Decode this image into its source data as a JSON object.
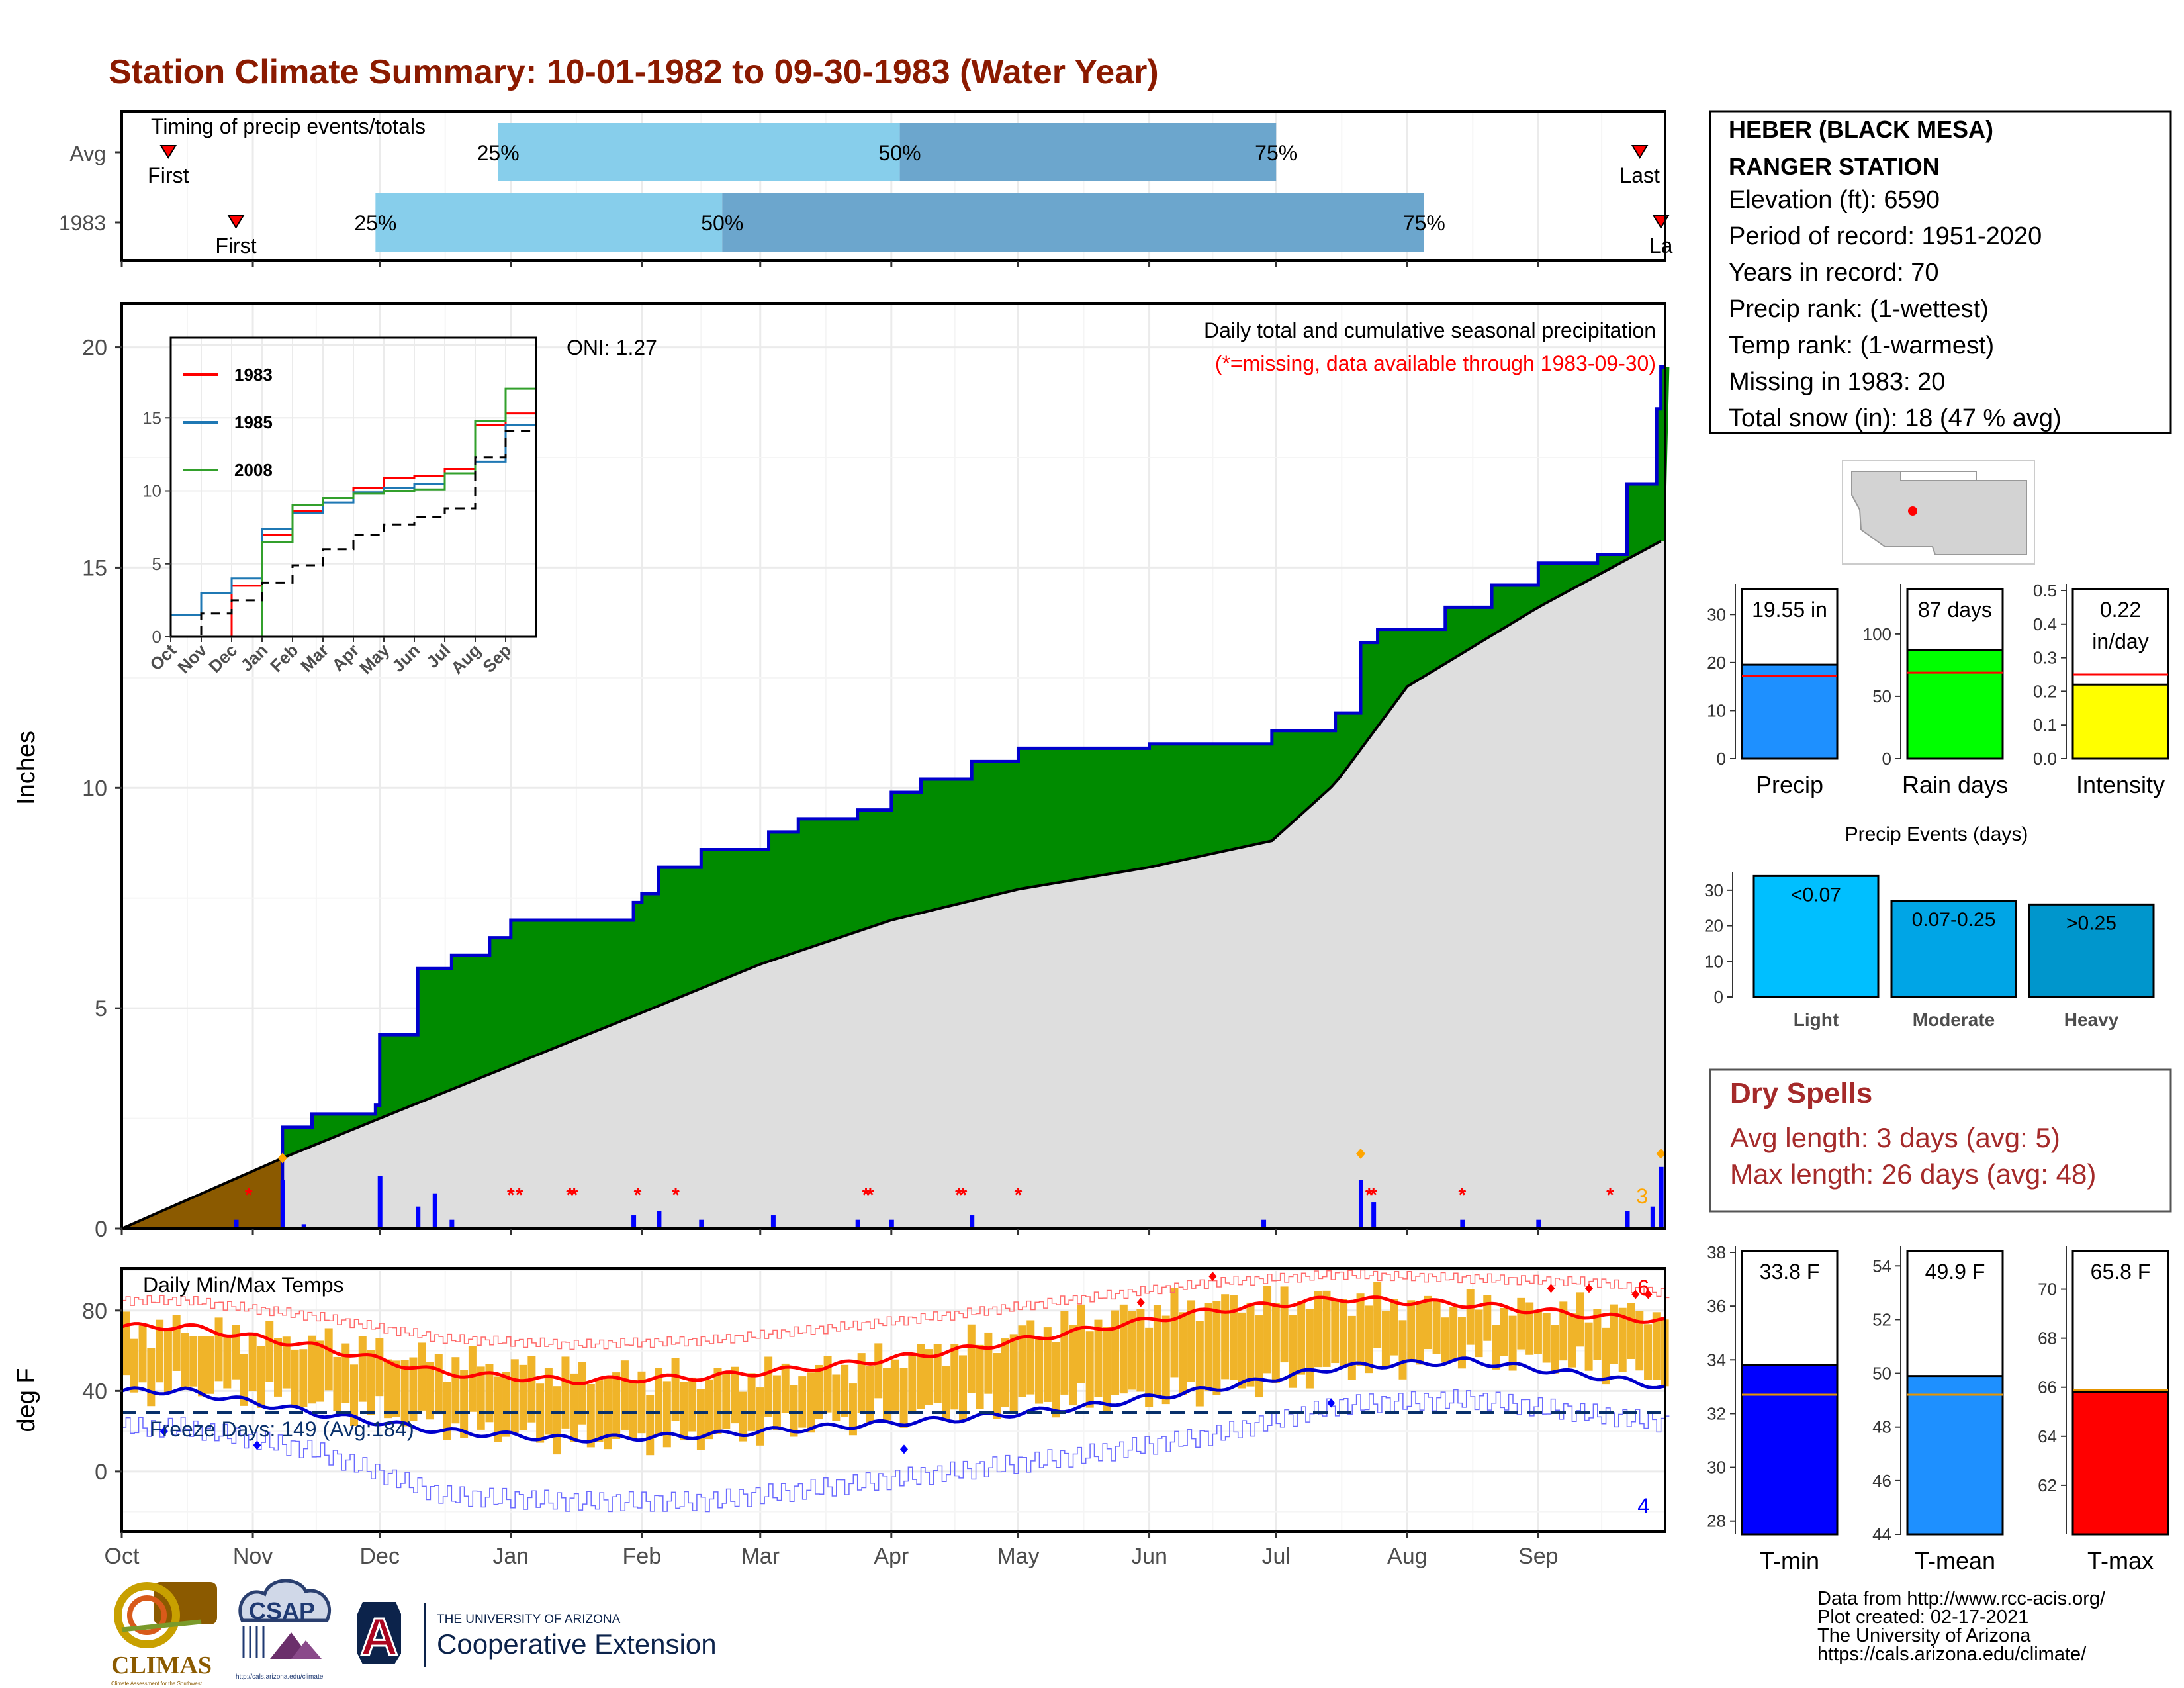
{
  "page": {
    "title": "Station Climate Summary: 10-01-1982 to 09-30-1983 (Water Year)",
    "credits": [
      "Data from http://www.rcc-acis.org/",
      "Plot created: 02-17-2021",
      "The University of Arizona",
      "https://cals.arizona.edu/climate/"
    ],
    "logos": {
      "climas": "CLIMAS",
      "climas_sub": "Climate Assessment for the Southwest",
      "csap": "CSAP",
      "csap_url": "http://cals.arizona.edu/climate",
      "ua_small": "THE UNIVERSITY OF ARIZONA",
      "ua_big": "Cooperative Extension",
      "ua_letter": "A"
    }
  },
  "station": {
    "name_line1": "HEBER (BLACK MESA)",
    "name_line2": "RANGER STATION",
    "lines": [
      "Elevation (ft): 6590",
      "Period of record: 1951-2020",
      "Years in record: 70",
      "Precip rank:  (1-wettest)",
      "Temp rank:  (1-warmest)",
      "Missing in 1983: 20",
      "Total snow (in): 18 (47 % avg)"
    ]
  },
  "colors": {
    "title": "#8b1a00",
    "timing_light": "#87ceeb",
    "timing_dark": "#6ca6cd",
    "cum_green": "#008b00",
    "cum_grey": "#dedede",
    "cum_brown": "#8b5a00",
    "line_blue": "#0000cd",
    "line_red": "#ff0000",
    "temp_bar": "#f0b429",
    "dry_spell": "#a52a2a"
  },
  "chart_data": [
    {
      "id": "timing",
      "type": "bar",
      "title": "Timing of precip events/totals",
      "rows": [
        "Avg",
        "1983"
      ],
      "row_avg": {
        "first_label": "First",
        "last_label": "Last",
        "first": "1982-10-12",
        "p25": "1982-12-29",
        "p50": "1983-04-03",
        "p75": "1983-07-01",
        "last": "1983-09-25"
      },
      "row_1983": {
        "first_label": "First",
        "last_label": "La",
        "first": "1982-10-28",
        "p25": "1982-11-30",
        "p50": "1983-02-20",
        "p75": "1983-08-05",
        "last": "1983-09-30"
      },
      "pct_labels": [
        "25%",
        "50%",
        "75%"
      ]
    },
    {
      "id": "precip",
      "type": "area",
      "ylabel": "Inches",
      "ylim": [
        0,
        21
      ],
      "yticks": [
        "0",
        "5",
        "10",
        "15",
        "20"
      ],
      "title": "Daily total and cumulative seasonal precipitation",
      "note": "(*=missing, data available through 1983-09-30)",
      "oni": "ONI: 1.27",
      "corner_label": "3",
      "xticks": [
        "Oct",
        "Nov",
        "Dec",
        "Jan",
        "Feb",
        "Mar",
        "Apr",
        "May",
        "Jun",
        "Jul",
        "Aug",
        "Sep"
      ],
      "series": [
        {
          "role": "cumulative-1983",
          "points": [
            [
              "1982-11-08",
              2.3
            ],
            [
              "1982-11-15",
              2.6
            ],
            [
              "1982-11-30",
              2.8
            ],
            [
              "1982-12-01",
              4.4
            ],
            [
              "1982-12-10",
              5.9
            ],
            [
              "1982-12-18",
              6.2
            ],
            [
              "1982-12-27",
              6.6
            ],
            [
              "1983-01-01",
              7.0
            ],
            [
              "1983-01-30",
              7.4
            ],
            [
              "1983-02-01",
              7.6
            ],
            [
              "1983-02-05",
              8.2
            ],
            [
              "1983-02-15",
              8.6
            ],
            [
              "1983-03-03",
              9.0
            ],
            [
              "1983-03-10",
              9.3
            ],
            [
              "1983-03-24",
              9.5
            ],
            [
              "1983-04-01",
              9.9
            ],
            [
              "1983-04-08",
              10.2
            ],
            [
              "1983-04-20",
              10.6
            ],
            [
              "1983-05-01",
              10.9
            ],
            [
              "1983-05-20",
              10.9
            ],
            [
              "1983-06-01",
              11.0
            ],
            [
              "1983-06-30",
              11.3
            ],
            [
              "1983-07-15",
              11.7
            ],
            [
              "1983-07-21",
              13.3
            ],
            [
              "1983-07-25",
              13.6
            ],
            [
              "1983-08-10",
              14.1
            ],
            [
              "1983-08-21",
              14.6
            ],
            [
              "1983-09-01",
              15.1
            ],
            [
              "1983-09-15",
              15.3
            ],
            [
              "1983-09-22",
              16.9
            ],
            [
              "1983-09-29",
              18.6
            ],
            [
              "1983-09-30",
              19.55
            ]
          ]
        },
        {
          "role": "cumulative-average",
          "points": [
            [
              "1982-10-01",
              0.0
            ],
            [
              "1982-11-08",
              1.6
            ],
            [
              "1982-12-01",
              2.5
            ],
            [
              "1983-01-01",
              3.7
            ],
            [
              "1983-02-01",
              4.9
            ],
            [
              "1983-03-01",
              6.0
            ],
            [
              "1983-04-01",
              7.0
            ],
            [
              "1983-05-01",
              7.7
            ],
            [
              "1983-06-01",
              8.2
            ],
            [
              "1983-06-30",
              8.8
            ],
            [
              "1983-07-15",
              10.1
            ],
            [
              "1983-08-01",
              12.3
            ],
            [
              "1983-09-01",
              14.1
            ],
            [
              "1983-09-30",
              15.6
            ]
          ]
        },
        {
          "role": "daily-bars",
          "points": [
            [
              "1982-10-28",
              0.2
            ],
            [
              "1982-11-08",
              1.1
            ],
            [
              "1982-11-13",
              0.1
            ],
            [
              "1982-12-01",
              1.2
            ],
            [
              "1982-12-10",
              0.5
            ],
            [
              "1982-12-14",
              0.8
            ],
            [
              "1982-12-18",
              0.2
            ],
            [
              "1983-01-30",
              0.3
            ],
            [
              "1983-02-05",
              0.4
            ],
            [
              "1983-02-15",
              0.2
            ],
            [
              "1983-03-04",
              0.3
            ],
            [
              "1983-03-24",
              0.2
            ],
            [
              "1983-04-01",
              0.2
            ],
            [
              "1983-04-20",
              0.3
            ],
            [
              "1983-06-28",
              0.2
            ],
            [
              "1983-07-21",
              1.1
            ],
            [
              "1983-07-24",
              0.6
            ],
            [
              "1983-08-14",
              0.2
            ],
            [
              "1983-09-01",
              0.2
            ],
            [
              "1983-09-22",
              0.4
            ],
            [
              "1983-09-28",
              0.5
            ],
            [
              "1983-09-30",
              1.4
            ]
          ]
        },
        {
          "role": "missing-days",
          "points": [
            "1982-10-31",
            "1983-01-01",
            "1983-01-03",
            "1983-01-15",
            "1983-01-16",
            "1983-01-31",
            "1983-02-09",
            "1983-03-26",
            "1983-03-27",
            "1983-04-17",
            "1983-04-18",
            "1983-05-01",
            "1983-07-23",
            "1983-07-24",
            "1983-08-14",
            "1983-09-18"
          ]
        }
      ],
      "inset": {
        "type": "line",
        "xticks": [
          "Oct",
          "Nov",
          "Dec",
          "Jan",
          "Feb",
          "Mar",
          "Apr",
          "May",
          "Jun",
          "Jul",
          "Aug",
          "Sep"
        ],
        "yticks": [
          "0",
          "5",
          "10",
          "15"
        ],
        "ylim": [
          0,
          20.5
        ],
        "series": [
          {
            "name": "1983",
            "color": "#ff0000",
            "values": [
              0,
              0,
              3.5,
              7.0,
              8.6,
              9.5,
              10.2,
              10.9,
              11.0,
              11.5,
              14.5,
              15.3,
              19.55
            ]
          },
          {
            "name": "1985",
            "color": "#1f78b4",
            "values": [
              1.5,
              3.0,
              4.0,
              7.4,
              8.5,
              9.2,
              9.9,
              10.2,
              10.5,
              11.2,
              12.0,
              14.5,
              19.8
            ]
          },
          {
            "name": "2008",
            "color": "#33a02c",
            "values": [
              0,
              0,
              0,
              6.5,
              9.0,
              9.5,
              9.8,
              10.0,
              10.1,
              11.2,
              14.8,
              17.0,
              20.5
            ]
          },
          {
            "name": "",
            "color": "#000000",
            "values": [
              0,
              1.6,
              2.5,
              3.7,
              4.9,
              6.0,
              7.0,
              7.7,
              8.2,
              8.8,
              12.3,
              14.1,
              15.6
            ]
          }
        ]
      }
    },
    {
      "id": "temps",
      "type": "line",
      "title": "Daily Min/Max Temps",
      "ylabel": "deg F",
      "ylim": [
        -30,
        101
      ],
      "yticks": [
        "0",
        "40",
        "80"
      ],
      "xticks": [
        "Oct",
        "Nov",
        "Dec",
        "Jan",
        "Feb",
        "Mar",
        "Apr",
        "May",
        "Jun",
        "Jul",
        "Aug",
        "Sep"
      ],
      "freeze_label": "Freeze Days: 149 (Avg:184)",
      "freeze_line": 32,
      "corner_high": "6",
      "corner_low": "4",
      "series": [
        {
          "name": "avg max",
          "months": [
            72,
            62,
            49,
            45,
            47,
            52,
            60,
            70,
            80,
            86,
            83,
            77,
            75
          ]
        },
        {
          "name": "avg min",
          "months": [
            40,
            29,
            20,
            16,
            18,
            22,
            26,
            32,
            41,
            52,
            55,
            47,
            42
          ]
        },
        {
          "name": "record max",
          "months": [
            85,
            77,
            66,
            63,
            65,
            71,
            78,
            86,
            94,
            98,
            96,
            94,
            88
          ]
        },
        {
          "name": "record min",
          "months": [
            22,
            10,
            -12,
            -15,
            -15,
            -8,
            0,
            8,
            18,
            33,
            36,
            28,
            24
          ]
        }
      ]
    },
    {
      "id": "precip-summary",
      "type": "bar",
      "panels": [
        {
          "label": "Precip",
          "value_text": "19.55 in",
          "value": 19.55,
          "average": 17.2,
          "ylim": [
            0,
            35
          ],
          "yticks": [
            "0",
            "10",
            "20",
            "30"
          ],
          "color": "#1e90ff"
        },
        {
          "label": "Rain days",
          "value_text": "87 days",
          "value": 87,
          "average": 69,
          "ylim": [
            0,
            135
          ],
          "yticks": [
            "0",
            "50",
            "100"
          ],
          "color": "#00ff00"
        },
        {
          "label": "Intensity",
          "value_text": "0.22 in/day",
          "value": 0.22,
          "average": 0.25,
          "ylim": [
            0,
            0.5
          ],
          "yticks": [
            "0.0",
            "0.1",
            "0.2",
            "0.3",
            "0.4",
            "0.5"
          ],
          "color": "#ffff00"
        }
      ]
    },
    {
      "id": "precip-events",
      "type": "bar",
      "title": "Precip Events (days)",
      "categories": [
        "Light",
        "Moderate",
        "Heavy"
      ],
      "bar_labels": [
        "<0.07",
        "0.07-0.25",
        ">0.25"
      ],
      "values": [
        34,
        27,
        26
      ],
      "ylim": [
        0,
        35
      ],
      "yticks": [
        "0",
        "10",
        "20",
        "30"
      ],
      "colors": [
        "#00bfff",
        "#00a5e6",
        "#0096cc"
      ]
    },
    {
      "id": "temp-summary",
      "type": "bar",
      "panels": [
        {
          "label": "T-min",
          "value_text": "33.8 F",
          "value": 33.8,
          "average": 32.7,
          "ylim": [
            27.5,
            38
          ],
          "yticks": [
            "28",
            "30",
            "32",
            "34",
            "36",
            "38"
          ],
          "color": "#0000ff"
        },
        {
          "label": "T-mean",
          "value_text": "49.9 F",
          "value": 49.9,
          "average": 49.2,
          "ylim": [
            44,
            54.5
          ],
          "yticks": [
            "44",
            "46",
            "48",
            "50",
            "52",
            "54"
          ],
          "color": "#1e90ff"
        },
        {
          "label": "T-max",
          "value_text": "65.8 F",
          "value": 65.8,
          "average": 65.9,
          "ylim": [
            60,
            71.5
          ],
          "yticks": [
            "62",
            "64",
            "66",
            "68",
            "70"
          ],
          "color": "#ff0000"
        }
      ]
    }
  ],
  "dry_spells": {
    "title": "Dry Spells",
    "avg_line": "Avg length: 3 days (avg: 5)",
    "max_line": "Max length: 26 days (avg: 48)"
  }
}
